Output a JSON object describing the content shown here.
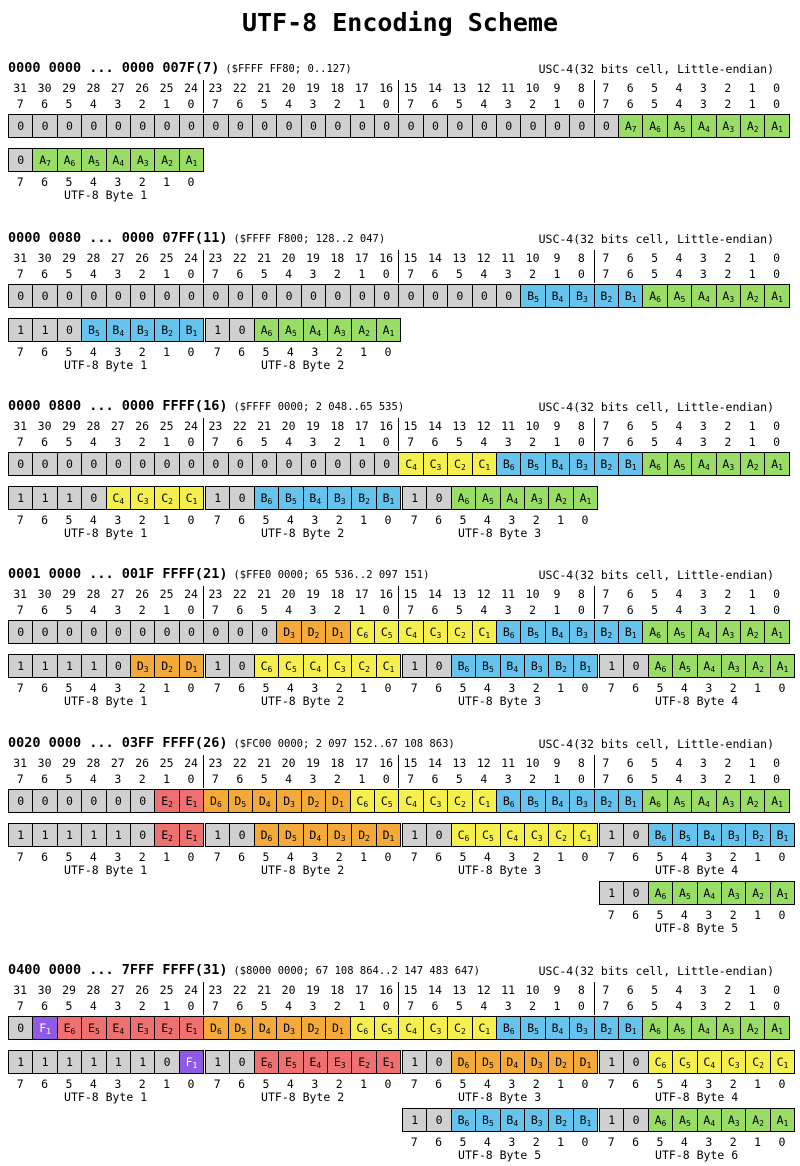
{
  "title": "UTF-8 Encoding Scheme",
  "colors": {
    "A": "#99dd66",
    "B": "#66c3ee",
    "C": "#f5f04d",
    "D": "#f4a93b",
    "E": "#ee7070",
    "F": "#8e5ae6",
    "gray": "#d0d0d0"
  },
  "usc_label": "USC-4(32 bits cell, Little-endian)",
  "bit_numbers": [
    "31",
    "30",
    "29",
    "28",
    "27",
    "26",
    "25",
    "24",
    "23",
    "22",
    "21",
    "20",
    "19",
    "18",
    "17",
    "16",
    "15",
    "14",
    "13",
    "12",
    "11",
    "10",
    "9",
    "8",
    "7",
    "6",
    "5",
    "4",
    "3",
    "2",
    "1",
    "0"
  ],
  "byte_positions": [
    "7",
    "6",
    "5",
    "4",
    "3",
    "2",
    "1",
    "0",
    "7",
    "6",
    "5",
    "4",
    "3",
    "2",
    "1",
    "0",
    "7",
    "6",
    "5",
    "4",
    "3",
    "2",
    "1",
    "0",
    "7",
    "6",
    "5",
    "4",
    "3",
    "2",
    "1",
    "0"
  ],
  "sections": [
    {
      "range": "0000 0000 ... 0000 007F(7)",
      "note": "($FFFF FF80; 0..127)",
      "ucs": [
        "0",
        "0",
        "0",
        "0",
        "0",
        "0",
        "0",
        "0",
        "0",
        "0",
        "0",
        "0",
        "0",
        "0",
        "0",
        "0",
        "0",
        "0",
        "0",
        "0",
        "0",
        "0",
        "0",
        "0",
        "0",
        "A7",
        "A6",
        "A5",
        "A4",
        "A3",
        "A2",
        "A1"
      ],
      "bytes": [
        {
          "label": "UTF-8 Byte 1",
          "cells": [
            "0",
            "A7",
            "A6",
            "A5",
            "A4",
            "A3",
            "A2",
            "A1"
          ]
        }
      ]
    },
    {
      "range": "0000 0080 ... 0000 07FF(11)",
      "note": "($FFFF F800; 128..2 047)",
      "ucs": [
        "0",
        "0",
        "0",
        "0",
        "0",
        "0",
        "0",
        "0",
        "0",
        "0",
        "0",
        "0",
        "0",
        "0",
        "0",
        "0",
        "0",
        "0",
        "0",
        "0",
        "0",
        "B5",
        "B4",
        "B3",
        "B2",
        "B1",
        "A6",
        "A5",
        "A4",
        "A3",
        "A2",
        "A1"
      ],
      "bytes": [
        {
          "label": "UTF-8 Byte 1",
          "cells": [
            "1",
            "1",
            "0",
            "B5",
            "B4",
            "B3",
            "B2",
            "B1"
          ]
        },
        {
          "label": "UTF-8 Byte 2",
          "cells": [
            "1",
            "0",
            "A6",
            "A5",
            "A4",
            "A3",
            "A2",
            "A1"
          ]
        }
      ]
    },
    {
      "range": "0000 0800 ... 0000 FFFF(16)",
      "note": "($FFFF 0000; 2 048..65 535)",
      "ucs": [
        "0",
        "0",
        "0",
        "0",
        "0",
        "0",
        "0",
        "0",
        "0",
        "0",
        "0",
        "0",
        "0",
        "0",
        "0",
        "0",
        "C4",
        "C3",
        "C2",
        "C1",
        "B6",
        "B5",
        "B4",
        "B3",
        "B2",
        "B1",
        "A6",
        "A5",
        "A4",
        "A3",
        "A2",
        "A1"
      ],
      "bytes": [
        {
          "label": "UTF-8 Byte 1",
          "cells": [
            "1",
            "1",
            "1",
            "0",
            "C4",
            "C3",
            "C2",
            "C1"
          ]
        },
        {
          "label": "UTF-8 Byte 2",
          "cells": [
            "1",
            "0",
            "B6",
            "B5",
            "B4",
            "B3",
            "B2",
            "B1"
          ]
        },
        {
          "label": "UTF-8 Byte 3",
          "cells": [
            "1",
            "0",
            "A6",
            "A5",
            "A4",
            "A3",
            "A2",
            "A1"
          ]
        }
      ]
    },
    {
      "range": "0001 0000 ... 001F FFFF(21)",
      "note": "($FFE0 0000; 65 536..2 097 151)",
      "ucs": [
        "0",
        "0",
        "0",
        "0",
        "0",
        "0",
        "0",
        "0",
        "0",
        "0",
        "0",
        "D3",
        "D2",
        "D1",
        "C6",
        "C5",
        "C4",
        "C3",
        "C2",
        "C1",
        "B6",
        "B5",
        "B4",
        "B3",
        "B2",
        "B1",
        "A6",
        "A5",
        "A4",
        "A3",
        "A2",
        "A1"
      ],
      "bytes": [
        {
          "label": "UTF-8 Byte 1",
          "cells": [
            "1",
            "1",
            "1",
            "1",
            "0",
            "D3",
            "D2",
            "D1"
          ]
        },
        {
          "label": "UTF-8 Byte 2",
          "cells": [
            "1",
            "0",
            "C6",
            "C5",
            "C4",
            "C3",
            "C2",
            "C1"
          ]
        },
        {
          "label": "UTF-8 Byte 3",
          "cells": [
            "1",
            "0",
            "B6",
            "B5",
            "B4",
            "B3",
            "B2",
            "B1"
          ]
        },
        {
          "label": "UTF-8 Byte 4",
          "cells": [
            "1",
            "0",
            "A6",
            "A5",
            "A4",
            "A3",
            "A2",
            "A1"
          ]
        }
      ]
    },
    {
      "range": "0020 0000 ... 03FF FFFF(26)",
      "note": "($FC00 0000; 2 097 152..67 108 863)",
      "ucs": [
        "0",
        "0",
        "0",
        "0",
        "0",
        "0",
        "E2",
        "E1",
        "D6",
        "D5",
        "D4",
        "D3",
        "D2",
        "D1",
        "C6",
        "C5",
        "C4",
        "C3",
        "C2",
        "C1",
        "B6",
        "B5",
        "B4",
        "B3",
        "B2",
        "B1",
        "A6",
        "A5",
        "A4",
        "A3",
        "A2",
        "A1"
      ],
      "bytes": [
        {
          "label": "UTF-8 Byte 1",
          "cells": [
            "1",
            "1",
            "1",
            "1",
            "1",
            "0",
            "E2",
            "E1"
          ]
        },
        {
          "label": "UTF-8 Byte 2",
          "cells": [
            "1",
            "0",
            "D6",
            "D5",
            "D4",
            "D3",
            "D2",
            "D1"
          ]
        },
        {
          "label": "UTF-8 Byte 3",
          "cells": [
            "1",
            "0",
            "C6",
            "C5",
            "C4",
            "C3",
            "C2",
            "C1"
          ]
        },
        {
          "label": "UTF-8 Byte 4",
          "cells": [
            "1",
            "0",
            "B6",
            "B5",
            "B4",
            "B3",
            "B2",
            "B1"
          ]
        },
        {
          "label": "UTF-8 Byte 5",
          "cells": [
            "1",
            "0",
            "A6",
            "A5",
            "A4",
            "A3",
            "A2",
            "A1"
          ]
        }
      ]
    },
    {
      "range": "0400 0000 ... 7FFF FFFF(31)",
      "note": "($8000 0000; 67 108 864..2 147 483 647)",
      "ucs": [
        "0",
        "F1",
        "E6",
        "E5",
        "E4",
        "E3",
        "E2",
        "E1",
        "D6",
        "D5",
        "D4",
        "D3",
        "D2",
        "D1",
        "C6",
        "C5",
        "C4",
        "C3",
        "C2",
        "C1",
        "B6",
        "B5",
        "B4",
        "B3",
        "B2",
        "B1",
        "A6",
        "A5",
        "A4",
        "A3",
        "A2",
        "A1"
      ],
      "bytes": [
        {
          "label": "UTF-8 Byte 1",
          "cells": [
            "1",
            "1",
            "1",
            "1",
            "1",
            "1",
            "0",
            "F1"
          ]
        },
        {
          "label": "UTF-8 Byte 2",
          "cells": [
            "1",
            "0",
            "E6",
            "E5",
            "E4",
            "E3",
            "E2",
            "E1"
          ]
        },
        {
          "label": "UTF-8 Byte 3",
          "cells": [
            "1",
            "0",
            "D6",
            "D5",
            "D4",
            "D3",
            "D2",
            "D1"
          ]
        },
        {
          "label": "UTF-8 Byte 4",
          "cells": [
            "1",
            "0",
            "C6",
            "C5",
            "C4",
            "C3",
            "C2",
            "C1"
          ]
        },
        {
          "label": "UTF-8 Byte 5",
          "cells": [
            "1",
            "0",
            "B6",
            "B5",
            "B4",
            "B3",
            "B2",
            "B1"
          ]
        },
        {
          "label": "UTF-8 Byte 6",
          "cells": [
            "1",
            "0",
            "A6",
            "A5",
            "A4",
            "A3",
            "A2",
            "A1"
          ]
        }
      ]
    }
  ]
}
